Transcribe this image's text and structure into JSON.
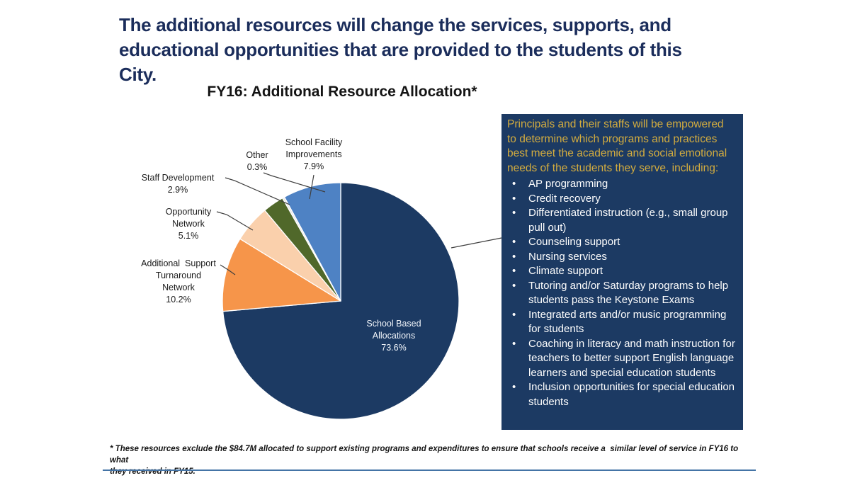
{
  "slide": {
    "title": "The additional resources will change the services, supports, and\neducational opportunities that are provided to the students of this City.",
    "chart_title": "FY16: Additional Resource Allocation*",
    "footnote": "* These resources exclude the $84.7M allocated to support existing programs and expenditures to ensure that schools receive a  similar level of service in FY16 to what\nthey received in FY15.",
    "title_color": "#1b2d5b",
    "divider_color": "#4474a6"
  },
  "callout_box": {
    "heading": "Principals and their staffs will be empowered\nto determine which programs and practices\nbest meet the academic and social emotional\nneeds of the students they serve, including:",
    "bullets": [
      "AP programming",
      "Credit recovery",
      "Differentiated instruction (e.g., small group pull out)",
      "Counseling support",
      "Nursing services",
      "Climate support",
      "Tutoring and/or Saturday programs to help students pass the Keystone Exams",
      "Integrated arts and/or music programming for students",
      "Coaching in literacy and math instruction for teachers to better support English language learners and special education students",
      "Inclusion opportunities for special education students"
    ],
    "background": "#1c3a63",
    "heading_color": "#d3ac3f",
    "bullet_color": "#fdfdfd"
  },
  "chart_data": {
    "type": "pie",
    "title": "FY16: Additional Resource Allocation*",
    "start_angle_deg": 0,
    "direction": "clockwise",
    "legend": "none",
    "labels_shown_with_percent": true,
    "slices": [
      {
        "label": "School Based Allocations",
        "value": 73.6,
        "color": "#1c3a63",
        "label_position": "inside",
        "display": "School Based\nAllocations\n73.6%"
      },
      {
        "label": "Additional Support Turnaround Network",
        "value": 10.2,
        "color": "#f6954a",
        "label_position": "outside",
        "display": "Additional  Support\nTurnaround\nNetwork\n10.2%"
      },
      {
        "label": "Opportunity Network",
        "value": 5.1,
        "color": "#fad0ac",
        "label_position": "outside",
        "display": "Opportunity\nNetwork\n5.1%"
      },
      {
        "label": "Staff Development",
        "value": 2.9,
        "color": "#50682a",
        "label_position": "outside",
        "display": "Staff Development\n2.9%"
      },
      {
        "label": "Other",
        "value": 0.3,
        "color": "#e9e9e9",
        "label_position": "outside",
        "display": "Other\n0.3%"
      },
      {
        "label": "School Facility Improvements",
        "value": 7.9,
        "color": "#4e82c4",
        "label_position": "outside",
        "display": "School Facility\nImprovements\n7.9%"
      }
    ]
  }
}
